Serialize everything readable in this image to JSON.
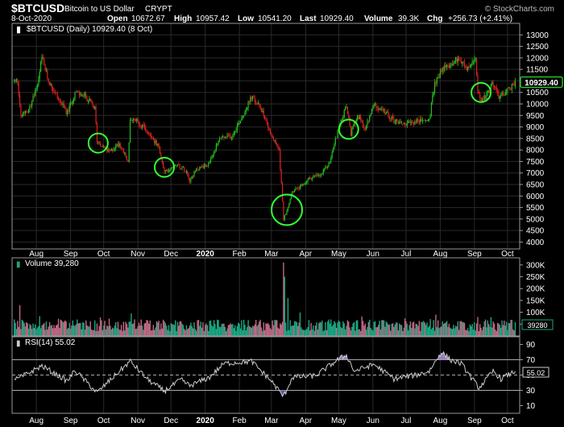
{
  "header": {
    "symbol": "$BTCUSD",
    "name": "Bitcoin to US Dollar",
    "exchange": "CRYPT",
    "date": "8-Oct-2020",
    "open_label": "Open",
    "open": "10672.67",
    "high_label": "High",
    "high": "10957.42",
    "low_label": "Low",
    "low": "10541.20",
    "last_label": "Last",
    "last": "10929.40",
    "volume_label": "Volume",
    "volume": "39.3K",
    "chg_label": "Chg",
    "chg": "+256.73 (+2.41%)",
    "watermark": "© StockCharts.com"
  },
  "colors": {
    "up": "#22c222",
    "down": "#e02020",
    "volume_up": "#1aa884",
    "volume_down": "#c06a84",
    "rsi_line": "#cccccc",
    "highlight_circle": "#33ff33",
    "last_badge_border": "#22c222"
  },
  "chart_data": [
    {
      "type": "candlestick",
      "panel": "price",
      "legend": "$BTCUSD (Daily) 10929.40 (8 Oct)",
      "ylim": [
        3700,
        13500
      ],
      "y_ticks": [
        4000,
        4500,
        5000,
        5500,
        6000,
        6500,
        7000,
        7500,
        8000,
        8500,
        9000,
        9500,
        10000,
        10500,
        11000,
        11500,
        12000,
        12500,
        13000
      ],
      "last_value_label": "10929.40",
      "last_value": 10929.4,
      "x_labels": [
        "Aug",
        "Sep",
        "Oct",
        "Nov",
        "Dec",
        "2020",
        "Feb",
        "Mar",
        "Apr",
        "May",
        "Jun",
        "Jul",
        "Aug",
        "Sep",
        "Oct"
      ],
      "trend_points": [
        [
          "2019-07-15",
          11000
        ],
        [
          "2019-07-18",
          9500
        ],
        [
          "2019-07-25",
          9800
        ],
        [
          "2019-08-01",
          10600
        ],
        [
          "2019-08-06",
          12000
        ],
        [
          "2019-08-12",
          11000
        ],
        [
          "2019-08-20",
          10300
        ],
        [
          "2019-08-29",
          9600
        ],
        [
          "2019-09-05",
          10500
        ],
        [
          "2019-09-15",
          10300
        ],
        [
          "2019-09-23",
          9800
        ],
        [
          "2019-09-25",
          8400
        ],
        [
          "2019-10-06",
          7900
        ],
        [
          "2019-10-15",
          8300
        ],
        [
          "2019-10-23",
          7500
        ],
        [
          "2019-10-25",
          9250
        ],
        [
          "2019-10-30",
          9300
        ],
        [
          "2019-11-10",
          8800
        ],
        [
          "2019-11-20",
          8100
        ],
        [
          "2019-11-25",
          7000
        ],
        [
          "2019-12-05",
          7400
        ],
        [
          "2019-12-15",
          7100
        ],
        [
          "2019-12-18",
          6700
        ],
        [
          "2019-12-25",
          7200
        ],
        [
          "2020-01-05",
          7400
        ],
        [
          "2020-01-14",
          8500
        ],
        [
          "2020-01-25",
          8600
        ],
        [
          "2020-02-05",
          9600
        ],
        [
          "2020-02-12",
          10300
        ],
        [
          "2020-02-22",
          9700
        ],
        [
          "2020-03-01",
          8600
        ],
        [
          "2020-03-08",
          8000
        ],
        [
          "2020-03-12",
          5000
        ],
        [
          "2020-03-15",
          5400
        ],
        [
          "2020-03-20",
          6200
        ],
        [
          "2020-03-28",
          6400
        ],
        [
          "2020-04-05",
          6800
        ],
        [
          "2020-04-15",
          6900
        ],
        [
          "2020-04-23",
          7500
        ],
        [
          "2020-04-30",
          8800
        ],
        [
          "2020-05-08",
          9900
        ],
        [
          "2020-05-12",
          8700
        ],
        [
          "2020-05-18",
          9500
        ],
        [
          "2020-05-25",
          8900
        ],
        [
          "2020-06-02",
          10000
        ],
        [
          "2020-06-10",
          9700
        ],
        [
          "2020-06-20",
          9300
        ],
        [
          "2020-07-01",
          9100
        ],
        [
          "2020-07-10",
          9250
        ],
        [
          "2020-07-22",
          9300
        ],
        [
          "2020-07-27",
          10900
        ],
        [
          "2020-08-02",
          11500
        ],
        [
          "2020-08-10",
          11700
        ],
        [
          "2020-08-17",
          12000
        ],
        [
          "2020-08-25",
          11500
        ],
        [
          "2020-09-02",
          11900
        ],
        [
          "2020-09-04",
          10400
        ],
        [
          "2020-09-08",
          10100
        ],
        [
          "2020-09-18",
          10900
        ],
        [
          "2020-09-23",
          10300
        ],
        [
          "2020-10-01",
          10600
        ],
        [
          "2020-10-08",
          10929
        ]
      ],
      "highlight_circles": [
        {
          "date": "2019-09-26",
          "value": 8300
        },
        {
          "date": "2019-11-25",
          "value": 7250
        },
        {
          "date": "2020-03-15",
          "value": 5400
        },
        {
          "date": "2020-05-10",
          "value": 8900
        },
        {
          "date": "2020-09-07",
          "value": 10500
        }
      ]
    },
    {
      "type": "bar",
      "panel": "volume",
      "legend": "Volume 39,280",
      "ylim": [
        0,
        330000
      ],
      "y_tick_labels": [
        "50K",
        "100K",
        "150K",
        "200K",
        "250K",
        "300K"
      ],
      "y_ticks": [
        50000,
        100000,
        150000,
        200000,
        250000,
        300000
      ],
      "last_value_label": "39280",
      "last_value": 39280,
      "spikes": [
        {
          "date": "2019-07-17",
          "value": 130000
        },
        {
          "date": "2019-10-26",
          "value": 95000
        },
        {
          "date": "2020-03-12",
          "value": 310000
        },
        {
          "date": "2020-03-13",
          "value": 250000
        },
        {
          "date": "2020-03-16",
          "value": 160000
        },
        {
          "date": "2020-07-28",
          "value": 90000
        },
        {
          "date": "2020-09-04",
          "value": 80000
        }
      ],
      "baseline_range": [
        20000,
        70000
      ]
    },
    {
      "type": "line",
      "panel": "rsi",
      "legend": "RSI(14) 55.02",
      "ylim": [
        0,
        100
      ],
      "y_ticks": [
        10,
        30,
        50,
        70,
        90
      ],
      "reference_lines": [
        30,
        50,
        70
      ],
      "last_value_label": "55.02",
      "last_value": 55.02,
      "x_labels": [
        "Aug",
        "Sep",
        "Oct",
        "Nov",
        "Dec",
        "2020",
        "Feb",
        "Mar",
        "Apr",
        "May",
        "Jun",
        "Jul",
        "Aug",
        "Sep",
        "Oct"
      ],
      "points": [
        [
          "2019-07-15",
          45
        ],
        [
          "2019-08-06",
          62
        ],
        [
          "2019-08-29",
          42
        ],
        [
          "2019-09-05",
          56
        ],
        [
          "2019-09-25",
          27
        ],
        [
          "2019-10-08",
          45
        ],
        [
          "2019-10-25",
          68
        ],
        [
          "2019-11-10",
          44
        ],
        [
          "2019-11-25",
          29
        ],
        [
          "2019-12-10",
          44
        ],
        [
          "2019-12-18",
          36
        ],
        [
          "2020-01-05",
          47
        ],
        [
          "2020-01-18",
          65
        ],
        [
          "2020-02-12",
          68
        ],
        [
          "2020-03-01",
          42
        ],
        [
          "2020-03-12",
          22
        ],
        [
          "2020-03-20",
          47
        ],
        [
          "2020-04-10",
          49
        ],
        [
          "2020-04-30",
          70
        ],
        [
          "2020-05-08",
          76
        ],
        [
          "2020-05-15",
          55
        ],
        [
          "2020-06-02",
          64
        ],
        [
          "2020-06-20",
          45
        ],
        [
          "2020-07-10",
          50
        ],
        [
          "2020-07-22",
          55
        ],
        [
          "2020-08-02",
          80
        ],
        [
          "2020-08-10",
          70
        ],
        [
          "2020-08-20",
          65
        ],
        [
          "2020-09-05",
          33
        ],
        [
          "2020-09-18",
          55
        ],
        [
          "2020-09-25",
          45
        ],
        [
          "2020-10-08",
          55
        ]
      ]
    }
  ]
}
